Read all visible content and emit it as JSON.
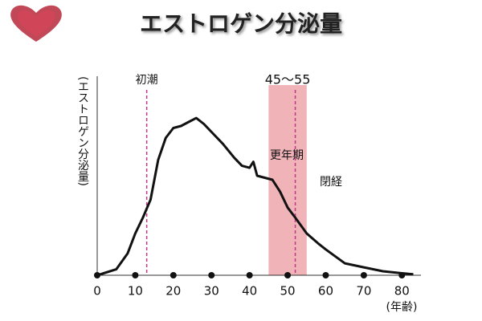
{
  "chart_data": {
    "type": "line",
    "title": "エストロゲン分泌量",
    "y_label": "(エストロゲン分泌量)",
    "x_label": "(年齢)",
    "x": [
      0,
      5,
      8,
      10,
      12,
      14,
      16,
      18,
      20,
      22,
      24,
      26,
      28,
      30,
      33,
      36,
      38,
      40,
      41,
      42,
      44,
      46,
      48,
      50,
      52,
      55,
      58,
      60,
      65,
      70,
      75,
      80,
      83
    ],
    "values": [
      0,
      3,
      11,
      21,
      29,
      38,
      58,
      69,
      74,
      75,
      77,
      79,
      76,
      72,
      66,
      59,
      55,
      54,
      57,
      50,
      49,
      48,
      42,
      34,
      29,
      21,
      16,
      13,
      6,
      4,
      2,
      1,
      0.5
    ],
    "color": "#111111",
    "xlim": [
      0,
      85
    ],
    "ylim": [
      0,
      100
    ],
    "xticks": [
      0,
      10,
      20,
      30,
      40,
      50,
      60,
      70,
      80
    ],
    "annotations": {
      "menarche": {
        "label": "初潮",
        "x": 13
      },
      "menopause_range": {
        "label": "45〜55",
        "range": [
          45,
          55
        ],
        "color": "#efb3b8"
      },
      "climacteric": "更年期",
      "menopause": {
        "label": "閉経",
        "x": 52
      }
    }
  }
}
